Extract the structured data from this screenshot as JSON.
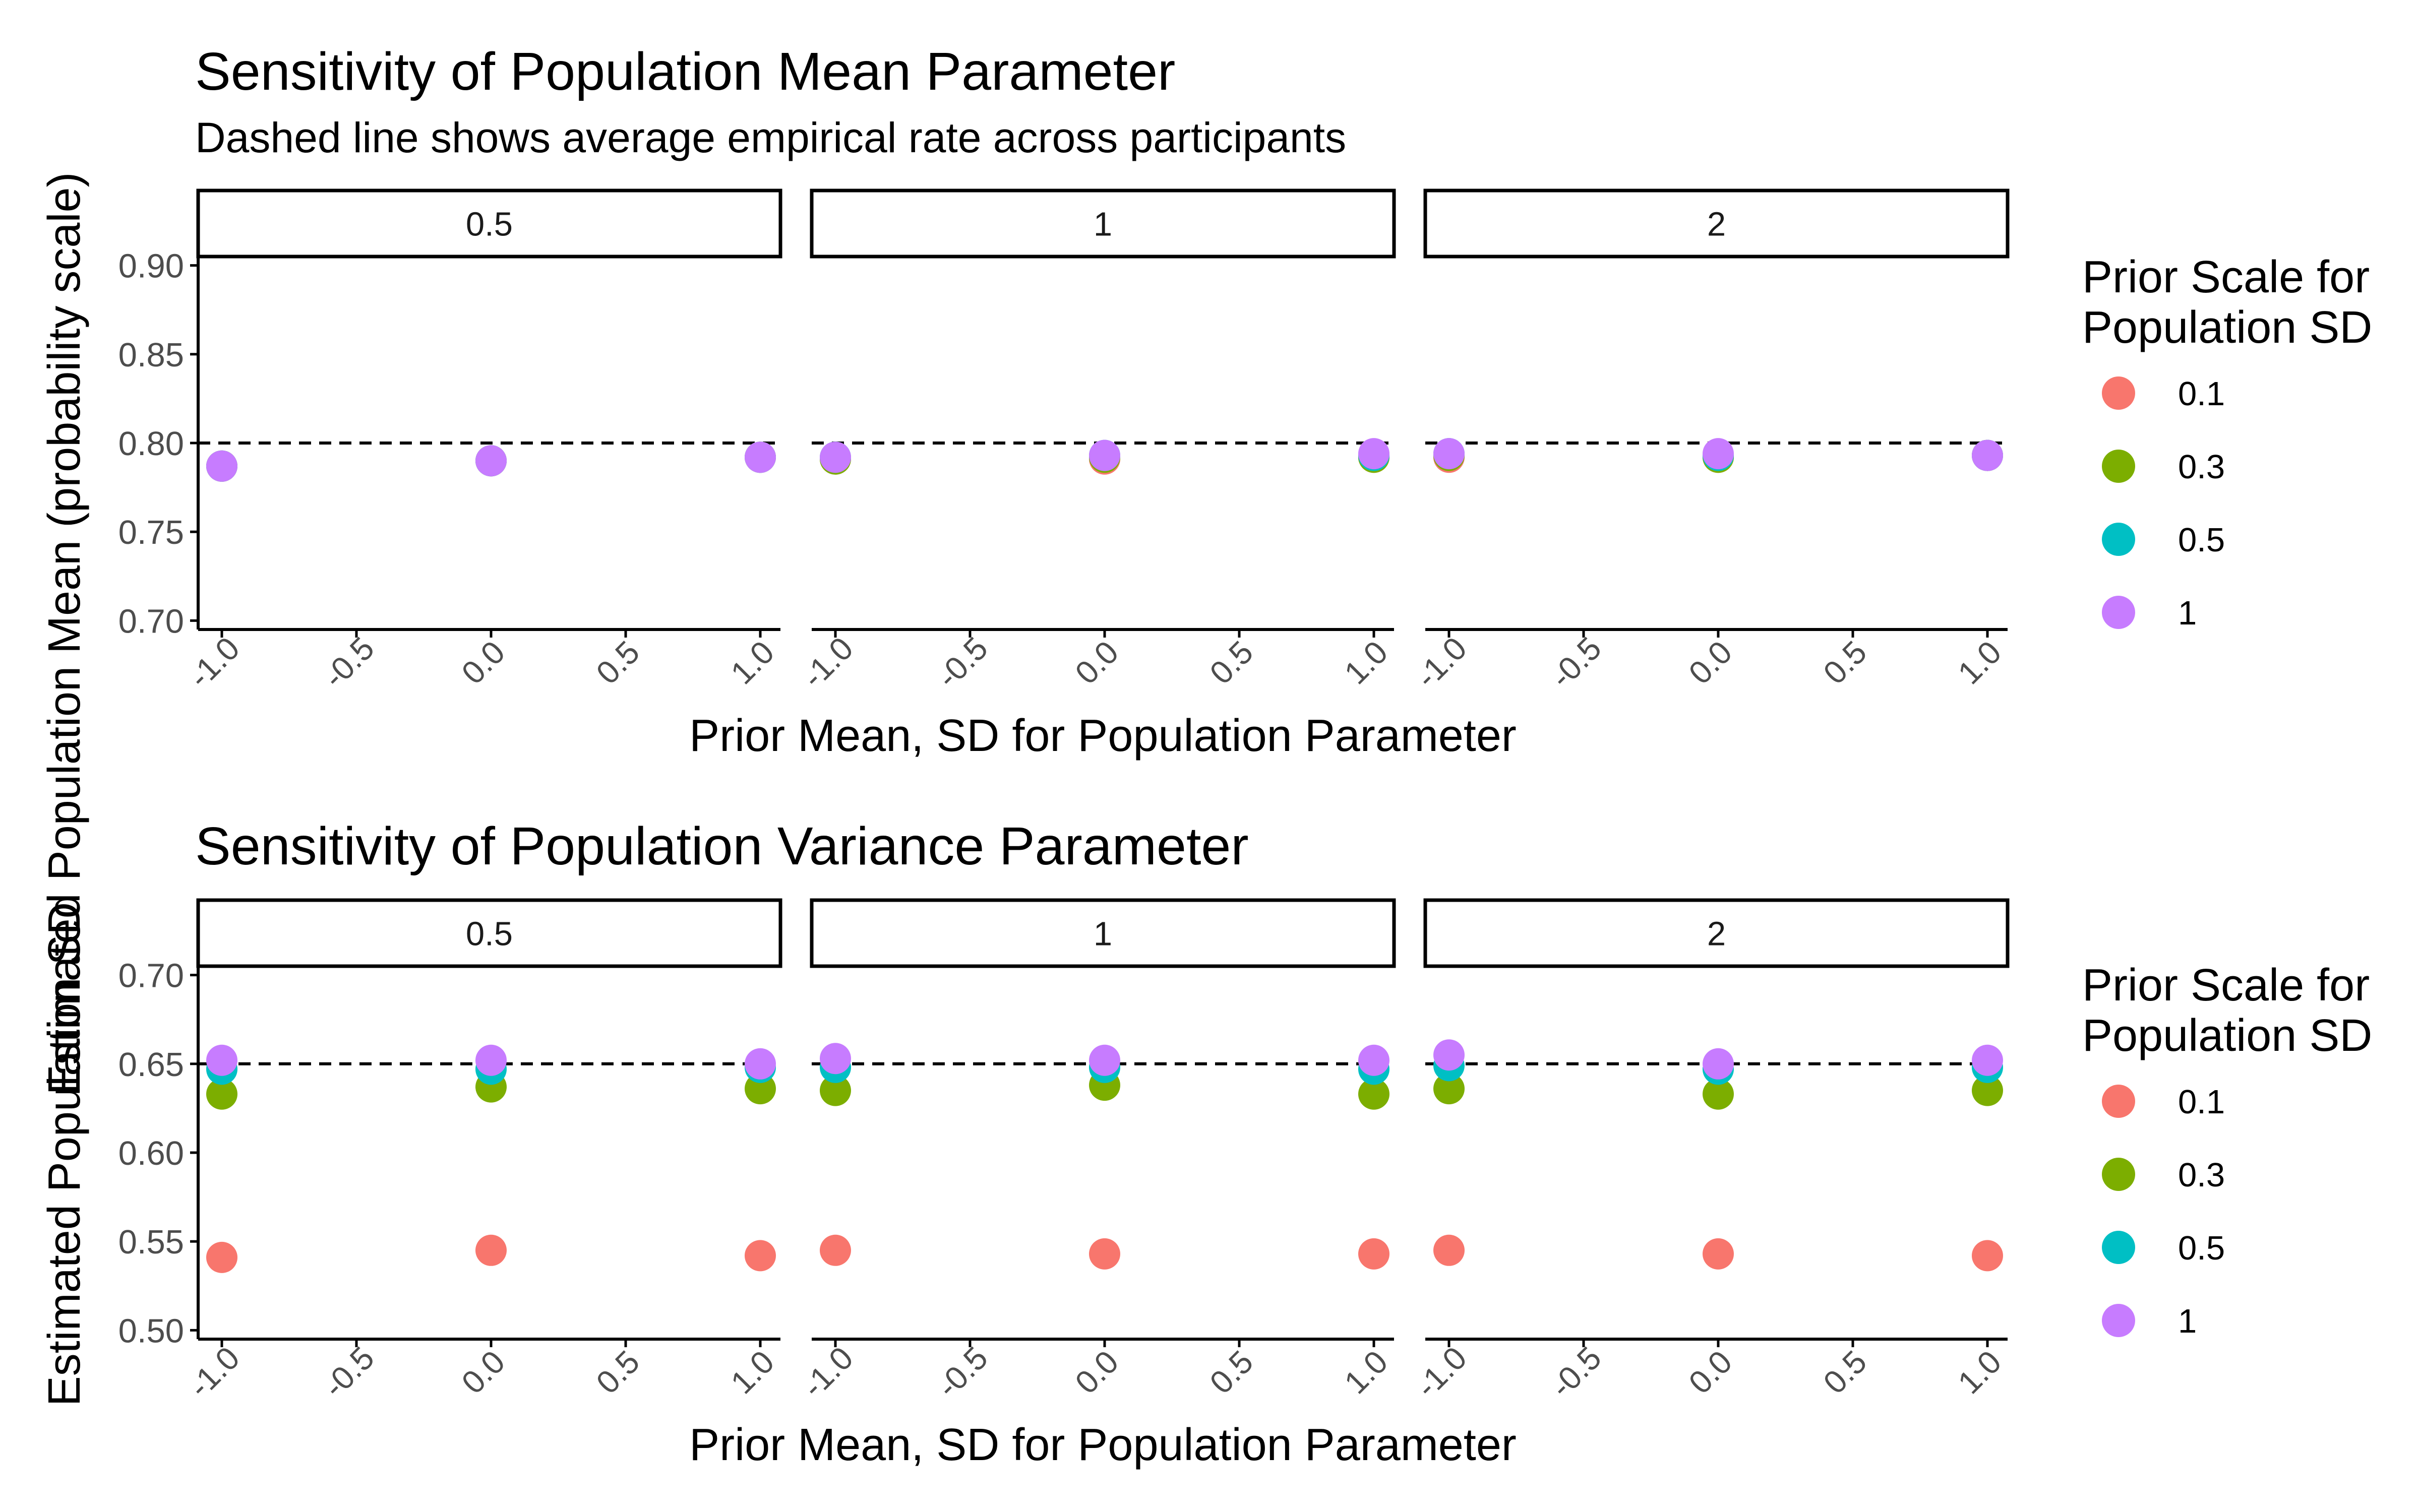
{
  "figure": {
    "colors": {
      "s01": "#F8766D",
      "s03": "#7CAE00",
      "s05": "#00BFC4",
      "s1": "#C77CFF",
      "ink": "#000000",
      "tick_text": "#4D4D4D"
    }
  },
  "chart_data": [
    {
      "type": "scatter",
      "title": "Sensitivity of Population Mean Parameter",
      "subtitle": "Dashed line shows average empirical rate across participants",
      "xlabel": "Prior Mean, SD for Population Parameter",
      "ylabel": "Estimated Population Mean (probability scale)",
      "facets": [
        "0.5",
        "1",
        "2"
      ],
      "xlim": [
        -1.0,
        1.0
      ],
      "ylim": [
        0.695,
        0.905
      ],
      "xticks": [
        -1.0,
        -0.5,
        0.0,
        0.5,
        1.0
      ],
      "xtick_labels": [
        "-1.0",
        "-0.5",
        "0.0",
        "0.5",
        "1.0"
      ],
      "yticks": [
        0.7,
        0.75,
        0.8,
        0.85,
        0.9
      ],
      "ytick_labels": [
        "0.70",
        "0.75",
        "0.80",
        "0.85",
        "0.90"
      ],
      "reference_line": {
        "y": 0.8,
        "style": "dashed"
      },
      "grid": false,
      "legend": {
        "title": "Prior Scale for Population SD",
        "title_lines": [
          "Prior Scale for",
          "Population SD"
        ],
        "position": "right",
        "entries": [
          "0.1",
          "0.3",
          "0.5",
          "1"
        ],
        "color_keys": [
          "s01",
          "s03",
          "s05",
          "s1"
        ]
      },
      "x": [
        -1.0,
        0.0,
        1.0
      ],
      "panels": [
        {
          "facet": "0.5",
          "series": [
            {
              "name": "0.1",
              "values": [
                0.787,
                0.79,
                0.792
              ]
            },
            {
              "name": "0.3",
              "values": [
                0.787,
                0.79,
                0.792
              ]
            },
            {
              "name": "0.5",
              "values": [
                0.787,
                0.79,
                0.792
              ]
            },
            {
              "name": "1",
              "values": [
                0.787,
                0.79,
                0.792
              ]
            }
          ]
        },
        {
          "facet": "1",
          "series": [
            {
              "name": "0.1",
              "values": [
                0.791,
                0.791,
                0.792
              ]
            },
            {
              "name": "0.3",
              "values": [
                0.791,
                0.792,
                0.792
              ]
            },
            {
              "name": "0.5",
              "values": [
                0.792,
                0.793,
                0.793
              ]
            },
            {
              "name": "1",
              "values": [
                0.792,
                0.793,
                0.794
              ]
            }
          ]
        },
        {
          "facet": "2",
          "series": [
            {
              "name": "0.1",
              "values": [
                0.792,
                0.792,
                0.793
              ]
            },
            {
              "name": "0.3",
              "values": [
                0.793,
                0.792,
                0.793
              ]
            },
            {
              "name": "0.5",
              "values": [
                0.794,
                0.793,
                0.793
              ]
            },
            {
              "name": "1",
              "values": [
                0.794,
                0.794,
                0.793
              ]
            }
          ]
        }
      ]
    },
    {
      "type": "scatter",
      "title": "Sensitivity of Population Variance Parameter",
      "subtitle": "",
      "xlabel": "Prior Mean, SD for Population Parameter",
      "ylabel": "Estimated Population SD",
      "facets": [
        "0.5",
        "1",
        "2"
      ],
      "xlim": [
        -1.0,
        1.0
      ],
      "ylim": [
        0.495,
        0.705
      ],
      "xticks": [
        -1.0,
        -0.5,
        0.0,
        0.5,
        1.0
      ],
      "xtick_labels": [
        "-1.0",
        "-0.5",
        "0.0",
        "0.5",
        "1.0"
      ],
      "yticks": [
        0.5,
        0.55,
        0.6,
        0.65,
        0.7
      ],
      "ytick_labels": [
        "0.50",
        "0.55",
        "0.60",
        "0.65",
        "0.70"
      ],
      "reference_line": {
        "y": 0.65,
        "style": "dashed"
      },
      "grid": false,
      "legend": {
        "title": "Prior Scale for Population SD",
        "title_lines": [
          "Prior Scale for",
          "Population SD"
        ],
        "position": "right",
        "entries": [
          "0.1",
          "0.3",
          "0.5",
          "1"
        ],
        "color_keys": [
          "s01",
          "s03",
          "s05",
          "s1"
        ]
      },
      "x": [
        -1.0,
        0.0,
        1.0
      ],
      "panels": [
        {
          "facet": "0.5",
          "series": [
            {
              "name": "0.1",
              "values": [
                0.541,
                0.545,
                0.542
              ]
            },
            {
              "name": "0.3",
              "values": [
                0.633,
                0.637,
                0.636
              ]
            },
            {
              "name": "0.5",
              "values": [
                0.647,
                0.647,
                0.648
              ]
            },
            {
              "name": "1",
              "values": [
                0.652,
                0.652,
                0.65
              ]
            }
          ]
        },
        {
          "facet": "1",
          "series": [
            {
              "name": "0.1",
              "values": [
                0.545,
                0.543,
                0.543
              ]
            },
            {
              "name": "0.3",
              "values": [
                0.635,
                0.638,
                0.633
              ]
            },
            {
              "name": "0.5",
              "values": [
                0.648,
                0.648,
                0.647
              ]
            },
            {
              "name": "1",
              "values": [
                0.653,
                0.652,
                0.652
              ]
            }
          ]
        },
        {
          "facet": "2",
          "series": [
            {
              "name": "0.1",
              "values": [
                0.545,
                0.543,
                0.542
              ]
            },
            {
              "name": "0.3",
              "values": [
                0.636,
                0.633,
                0.635
              ]
            },
            {
              "name": "0.5",
              "values": [
                0.649,
                0.647,
                0.648
              ]
            },
            {
              "name": "1",
              "values": [
                0.655,
                0.65,
                0.652
              ]
            }
          ]
        }
      ]
    }
  ]
}
